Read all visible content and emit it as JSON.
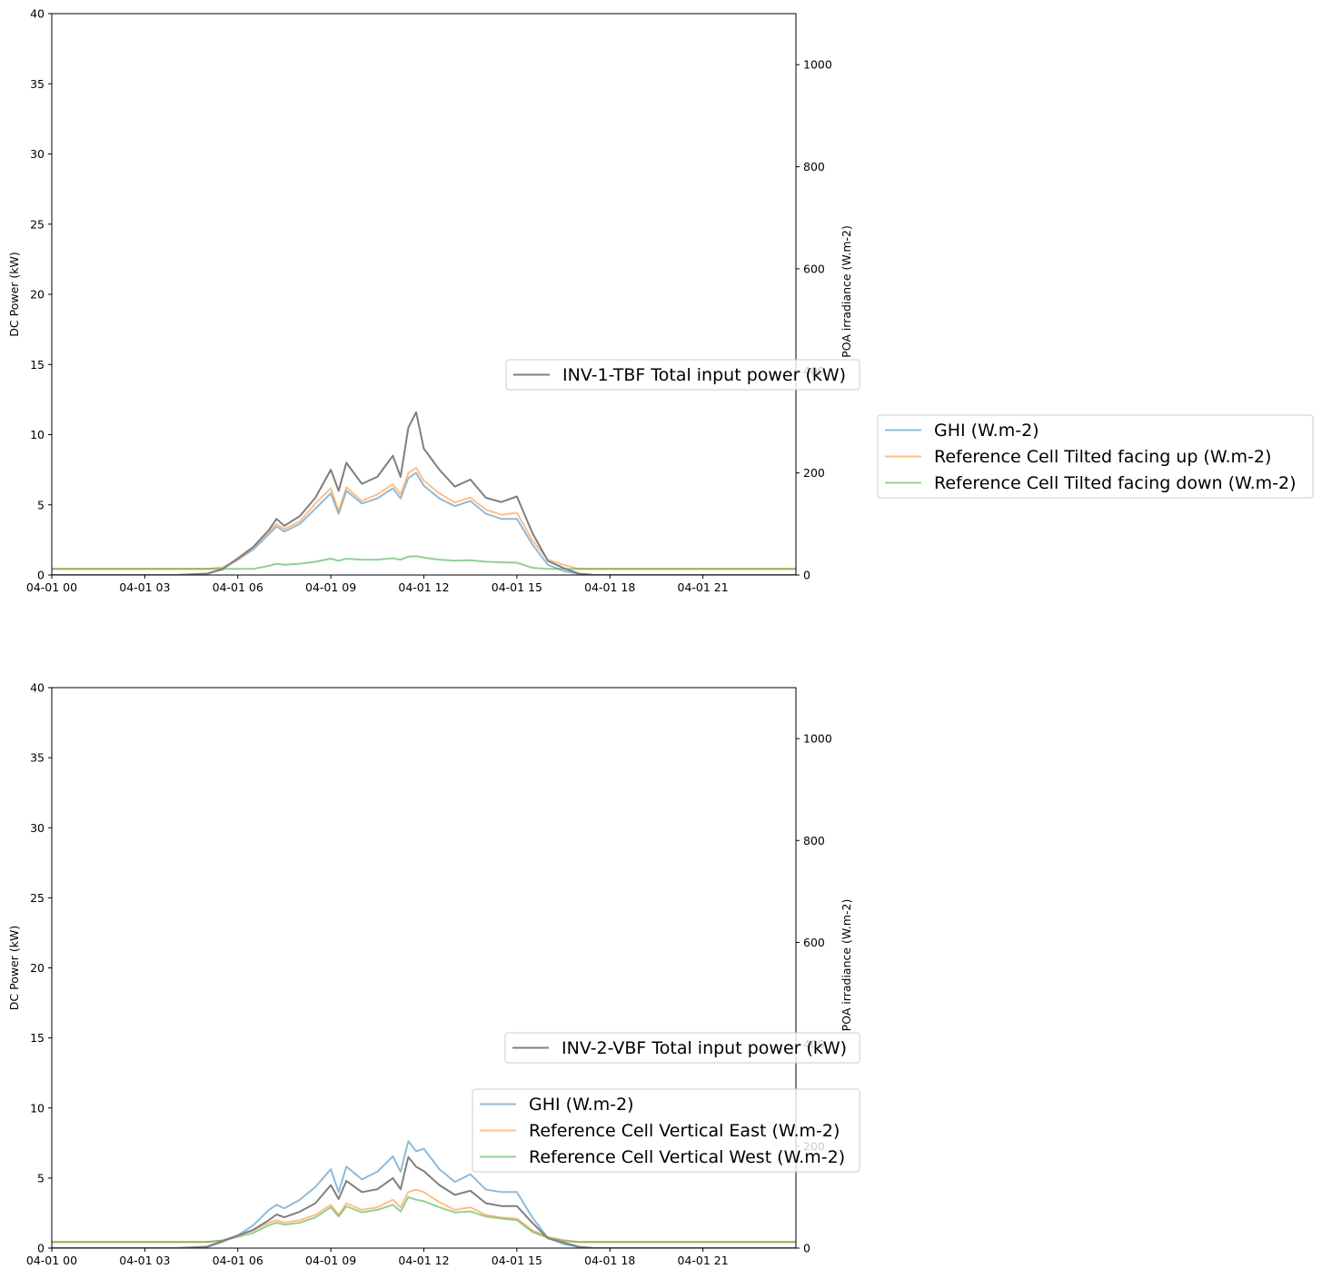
{
  "chart_data": [
    {
      "type": "line",
      "ylabel": "DC Power (kW)",
      "ylabel_right": "POA irradiance (W.m-2)",
      "ylim": [
        0,
        40
      ],
      "ylim_right": [
        0,
        1100
      ],
      "xlim": [
        "04-01 00",
        "04-01 24"
      ],
      "xticks": [
        "04-01 00",
        "04-01 03",
        "04-01 06",
        "04-01 09",
        "04-01 12",
        "04-01 15",
        "04-01 18",
        "04-01 21"
      ],
      "yticks": [
        0,
        5,
        10,
        15,
        20,
        25,
        30,
        35,
        40
      ],
      "yticks_right": [
        0,
        200,
        400,
        600,
        800,
        1000
      ],
      "grid": false,
      "legend_primary": "upper-right inside plot",
      "legend_secondary": "right outside plot",
      "x_hours": [
        0,
        1,
        2,
        3,
        4,
        5,
        5.5,
        6,
        6.5,
        7,
        7.25,
        7.5,
        8,
        8.5,
        9,
        9.25,
        9.5,
        10,
        10.5,
        11,
        11.25,
        11.5,
        11.75,
        12,
        12.5,
        13,
        13.5,
        14,
        14.5,
        15,
        15.5,
        16,
        16.5,
        17,
        17.5,
        18,
        19,
        20,
        21,
        22,
        23,
        24
      ],
      "series": [
        {
          "name": "INV-1-TBF Total input power (kW)",
          "axis": "left",
          "color": "#7f7f7f",
          "values": [
            0,
            0,
            0,
            0,
            0,
            0.1,
            0.4,
            1.2,
            2.0,
            3.2,
            4.0,
            3.5,
            4.2,
            5.5,
            7.5,
            6.0,
            8.0,
            6.5,
            7.0,
            8.5,
            7.0,
            10.5,
            11.6,
            9.0,
            7.5,
            6.3,
            6.8,
            5.5,
            5.2,
            5.6,
            3.0,
            1.0,
            0.5,
            0.1,
            0,
            0,
            0,
            0,
            0,
            0,
            0,
            0
          ]
        },
        {
          "name": "GHI (W.m-2)",
          "axis": "right",
          "color": "#1f77b4",
          "values": [
            0,
            0,
            0,
            0,
            0,
            2,
            12,
            30,
            50,
            80,
            95,
            85,
            100,
            130,
            160,
            120,
            165,
            140,
            150,
            170,
            150,
            190,
            200,
            175,
            150,
            135,
            145,
            120,
            110,
            110,
            60,
            20,
            8,
            2,
            0,
            0,
            0,
            0,
            0,
            0,
            0,
            0
          ]
        },
        {
          "name": "Reference Cell Tilted facing up (W.m-2)",
          "axis": "right",
          "color": "#ff7f0e",
          "values": [
            12,
            12,
            12,
            12,
            12,
            12,
            15,
            30,
            55,
            85,
            100,
            90,
            105,
            140,
            170,
            125,
            172,
            145,
            158,
            178,
            158,
            200,
            210,
            185,
            160,
            142,
            152,
            128,
            118,
            122,
            68,
            30,
            20,
            12,
            12,
            12,
            12,
            12,
            12,
            12,
            12,
            12
          ]
        },
        {
          "name": "Reference Cell Tilted facing down (W.m-2)",
          "axis": "right",
          "color": "#2ca02c",
          "values": [
            12,
            12,
            12,
            12,
            12,
            12,
            12,
            12,
            12,
            18,
            22,
            20,
            22,
            26,
            32,
            28,
            32,
            30,
            30,
            33,
            30,
            36,
            37,
            34,
            30,
            28,
            29,
            26,
            25,
            24,
            14,
            12,
            12,
            12,
            12,
            12,
            12,
            12,
            12,
            12,
            12,
            12
          ]
        }
      ]
    },
    {
      "type": "line",
      "ylabel": "DC Power (kW)",
      "ylabel_right": "POA irradiance (W.m-2)",
      "ylim": [
        0,
        40
      ],
      "ylim_right": [
        0,
        1100
      ],
      "xlim": [
        "04-01 00",
        "04-01 24"
      ],
      "xticks": [
        "04-01 00",
        "04-01 03",
        "04-01 06",
        "04-01 09",
        "04-01 12",
        "04-01 15",
        "04-01 18",
        "04-01 21"
      ],
      "yticks": [
        0,
        5,
        10,
        15,
        20,
        25,
        30,
        35,
        40
      ],
      "yticks_right": [
        0,
        200,
        400,
        600,
        800,
        1000
      ],
      "grid": false,
      "legend_primary": "upper-right inside plot",
      "legend_secondary": "lower-right inside plot",
      "x_hours": [
        0,
        1,
        2,
        3,
        4,
        5,
        5.5,
        6,
        6.5,
        7,
        7.25,
        7.5,
        8,
        8.5,
        9,
        9.25,
        9.5,
        10,
        10.5,
        11,
        11.25,
        11.5,
        11.75,
        12,
        12.5,
        13,
        13.5,
        14,
        14.5,
        15,
        15.5,
        16,
        16.5,
        17,
        17.5,
        18,
        19,
        20,
        21,
        22,
        23,
        24
      ],
      "series": [
        {
          "name": "INV-2-VBF Total input power (kW)",
          "axis": "left",
          "color": "#7f7f7f",
          "values": [
            0,
            0,
            0,
            0,
            0,
            0.1,
            0.5,
            0.9,
            1.3,
            2.0,
            2.4,
            2.2,
            2.6,
            3.2,
            4.5,
            3.5,
            4.8,
            4.0,
            4.2,
            5.0,
            4.2,
            6.5,
            5.8,
            5.5,
            4.5,
            3.8,
            4.1,
            3.2,
            3.0,
            3.0,
            1.8,
            0.7,
            0.4,
            0.1,
            0,
            0,
            0,
            0,
            0,
            0,
            0,
            0
          ]
        },
        {
          "name": "GHI (W.m-2)",
          "axis": "right",
          "color": "#1f77b4",
          "values": [
            0,
            0,
            0,
            0,
            0,
            2,
            12,
            25,
            45,
            75,
            85,
            78,
            95,
            120,
            155,
            110,
            160,
            135,
            150,
            180,
            150,
            210,
            190,
            195,
            155,
            130,
            145,
            115,
            110,
            110,
            60,
            20,
            8,
            2,
            0,
            0,
            0,
            0,
            0,
            0,
            0,
            0
          ]
        },
        {
          "name": "Reference Cell Vertical East (W.m-2)",
          "axis": "right",
          "color": "#ff7f0e",
          "values": [
            12,
            12,
            12,
            12,
            12,
            12,
            15,
            25,
            35,
            50,
            55,
            50,
            55,
            65,
            85,
            65,
            88,
            75,
            80,
            95,
            80,
            110,
            115,
            110,
            90,
            75,
            80,
            65,
            60,
            58,
            35,
            22,
            16,
            12,
            12,
            12,
            12,
            12,
            12,
            12,
            12,
            12
          ]
        },
        {
          "name": "Reference Cell Vertical West (W.m-2)",
          "axis": "right",
          "color": "#2ca02c",
          "values": [
            12,
            12,
            12,
            12,
            12,
            12,
            15,
            22,
            30,
            45,
            50,
            46,
            50,
            60,
            80,
            62,
            82,
            70,
            75,
            85,
            72,
            100,
            95,
            92,
            80,
            70,
            72,
            62,
            58,
            55,
            32,
            20,
            14,
            12,
            12,
            12,
            12,
            12,
            12,
            12,
            12,
            12
          ]
        }
      ]
    }
  ]
}
